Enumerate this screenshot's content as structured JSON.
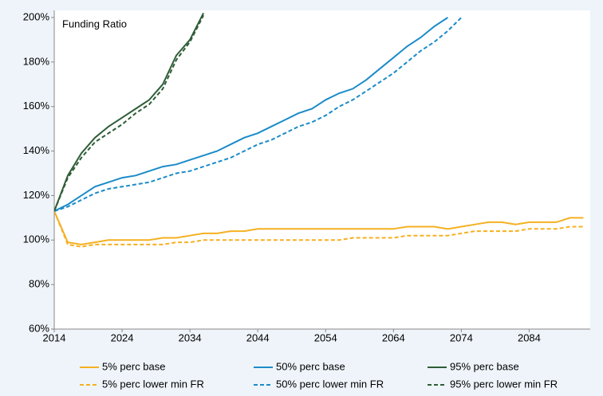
{
  "chart_data": {
    "type": "line",
    "title": "Funding Ratio",
    "x": [
      2014,
      2016,
      2018,
      2020,
      2022,
      2024,
      2026,
      2028,
      2030,
      2032,
      2034,
      2036,
      2038,
      2040,
      2042,
      2044,
      2046,
      2048,
      2050,
      2052,
      2054,
      2056,
      2058,
      2060,
      2062,
      2064,
      2066,
      2068,
      2070,
      2072,
      2074,
      2076,
      2078,
      2080,
      2082,
      2084,
      2086,
      2088,
      2090,
      2092
    ],
    "xlim": [
      2014,
      2093
    ],
    "xticks": [
      2014,
      2024,
      2034,
      2044,
      2054,
      2064,
      2074,
      2084
    ],
    "ylim": [
      60,
      200
    ],
    "yticks": [
      {
        "value": 60,
        "label": "60%"
      },
      {
        "value": 80,
        "label": "80%"
      },
      {
        "value": 100,
        "label": "100%"
      },
      {
        "value": 120,
        "label": "120%"
      },
      {
        "value": 140,
        "label": "140%"
      },
      {
        "value": 160,
        "label": "160%"
      },
      {
        "value": 180,
        "label": "180%"
      },
      {
        "value": 200,
        "label": "200%"
      }
    ],
    "series": [
      {
        "name": "5% perc base",
        "color": "#f5b021",
        "dashed": false,
        "values": [
          113,
          99,
          98,
          99,
          100,
          100,
          100,
          100,
          101,
          101,
          102,
          103,
          103,
          104,
          104,
          105,
          105,
          105,
          105,
          105,
          105,
          105,
          105,
          105,
          105,
          105,
          106,
          106,
          106,
          105,
          106,
          107,
          108,
          108,
          107,
          108,
          108,
          108,
          110,
          110
        ]
      },
      {
        "name": "50% perc base",
        "color": "#1b8bc8",
        "dashed": false,
        "values": [
          113,
          116,
          120,
          124,
          126,
          128,
          129,
          131,
          133,
          134,
          136,
          138,
          140,
          143,
          146,
          148,
          151,
          154,
          157,
          159,
          163,
          166,
          168,
          172,
          177,
          182,
          187,
          191,
          196,
          200,
          null,
          null,
          null,
          null,
          null,
          null,
          null,
          null,
          null,
          null
        ]
      },
      {
        "name": "95% perc base",
        "color": "#2e5d36",
        "dashed": false,
        "values": [
          113,
          129,
          139,
          146,
          151,
          155,
          159,
          163,
          170,
          183,
          190,
          202,
          null,
          null,
          null,
          null,
          null,
          null,
          null,
          null,
          null,
          null,
          null,
          null,
          null,
          null,
          null,
          null,
          null,
          null,
          null,
          null,
          null,
          null,
          null,
          null,
          null,
          null,
          null,
          null
        ]
      },
      {
        "name": "5% perc lower min FR",
        "color": "#f5b021",
        "dashed": true,
        "values": [
          113,
          98,
          97,
          98,
          98,
          98,
          98,
          98,
          98,
          99,
          99,
          100,
          100,
          100,
          100,
          100,
          100,
          100,
          100,
          100,
          100,
          100,
          101,
          101,
          101,
          101,
          102,
          102,
          102,
          102,
          103,
          104,
          104,
          104,
          104,
          105,
          105,
          105,
          106,
          106
        ]
      },
      {
        "name": "50% perc lower min FR",
        "color": "#1b8bc8",
        "dashed": true,
        "values": [
          113,
          115,
          118,
          121,
          123,
          124,
          125,
          126,
          128,
          130,
          131,
          133,
          135,
          137,
          140,
          143,
          145,
          148,
          151,
          153,
          156,
          160,
          163,
          167,
          171,
          175,
          180,
          185,
          189,
          194,
          200,
          null,
          null,
          null,
          null,
          null,
          null,
          null,
          null,
          null
        ]
      },
      {
        "name": "95% perc lower min FR",
        "color": "#2e5d36",
        "dashed": true,
        "values": [
          113,
          128,
          137,
          144,
          148,
          152,
          157,
          161,
          168,
          181,
          189,
          201,
          null,
          null,
          null,
          null,
          null,
          null,
          null,
          null,
          null,
          null,
          null,
          null,
          null,
          null,
          null,
          null,
          null,
          null,
          null,
          null,
          null,
          null,
          null,
          null,
          null,
          null,
          null,
          null
        ]
      }
    ]
  }
}
